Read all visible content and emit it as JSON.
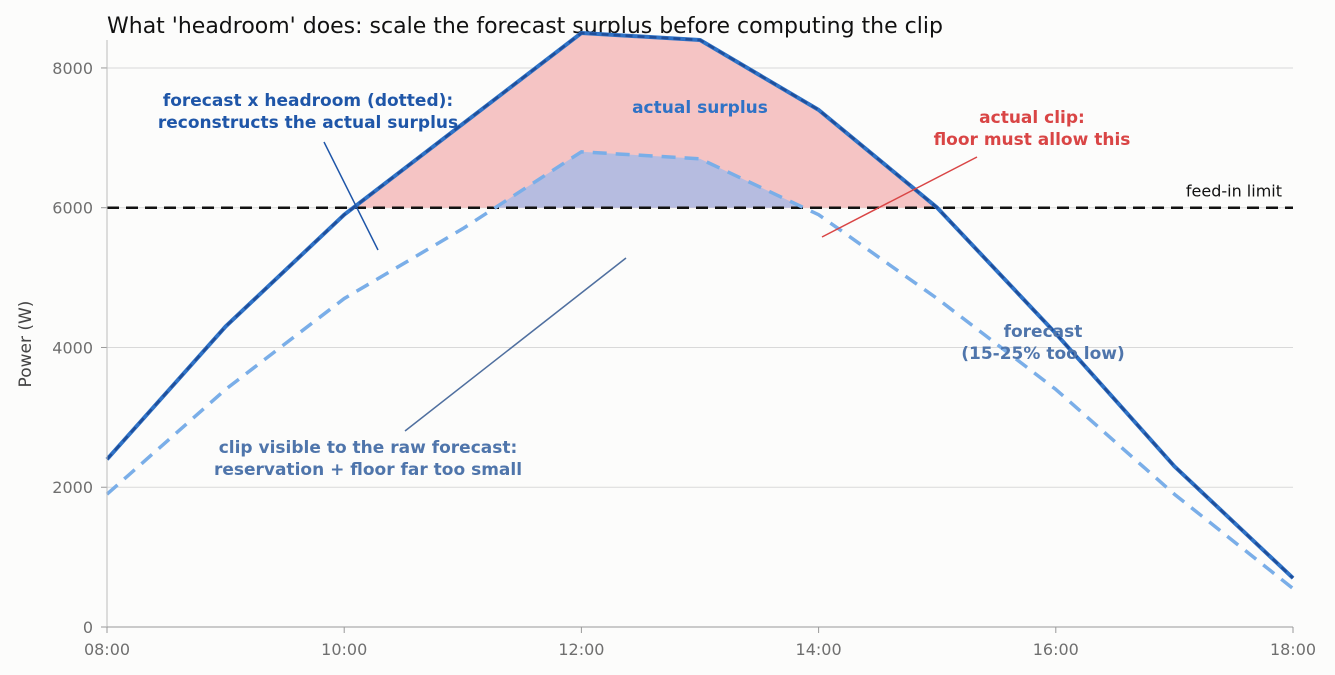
{
  "chart_data": {
    "type": "line",
    "title": "What 'headroom' does: scale the forecast surplus before computing the clip",
    "xlabel": "",
    "ylabel": "Power (W)",
    "xlim": [
      "08:00",
      "18:00"
    ],
    "ylim": [
      0,
      8400
    ],
    "x_ticks": [
      "08:00",
      "10:00",
      "12:00",
      "14:00",
      "16:00",
      "18:00"
    ],
    "y_ticks": [
      0,
      2000,
      4000,
      6000,
      8000
    ],
    "grid": "horizontal",
    "x": [
      "08:00",
      "09:00",
      "10:00",
      "11:00",
      "12:00",
      "13:00",
      "14:00",
      "15:00",
      "16:00",
      "17:00",
      "18:00"
    ],
    "series": [
      {
        "name": "actual surplus",
        "color": "#2f72c6",
        "style": "solid",
        "values": [
          2400,
          4300,
          5900,
          7200,
          8500,
          8400,
          7400,
          6000,
          4200,
          2300,
          700
        ]
      },
      {
        "name": "forecast x headroom (dotted)",
        "color": "#1f4e9a",
        "style": "dotted",
        "values": [
          2400,
          4300,
          5900,
          7200,
          8500,
          8400,
          7400,
          6000,
          4200,
          2300,
          700
        ]
      },
      {
        "name": "forecast",
        "color": "#7aaee8",
        "style": "dashed",
        "values": [
          1900,
          3400,
          4700,
          5700,
          6800,
          6700,
          5900,
          4700,
          3400,
          1900,
          550
        ]
      }
    ],
    "reference_line": {
      "label": "feed-in limit",
      "value": 6000,
      "color": "#111111"
    },
    "fills": {
      "actual_clip_color": "#f5c4c4",
      "forecast_clip_color": "#b6bce0"
    },
    "annotations": [
      {
        "id": "headroom",
        "lines": [
          "forecast x headroom (dotted):",
          "reconstructs the actual surplus"
        ],
        "color": "#1f56a8"
      },
      {
        "id": "actual",
        "lines": [
          "actual surplus"
        ],
        "color": "#2f72c6"
      },
      {
        "id": "clip",
        "lines": [
          "actual clip:",
          "floor must allow this"
        ],
        "color": "#d94545"
      },
      {
        "id": "forecast",
        "lines": [
          "forecast",
          "(15-25% too low)"
        ],
        "color": "#4f75ab"
      },
      {
        "id": "rawclip",
        "lines": [
          "clip visible to the raw forecast:",
          "reservation + floor far too small"
        ],
        "color": "#4f75ab"
      }
    ]
  }
}
